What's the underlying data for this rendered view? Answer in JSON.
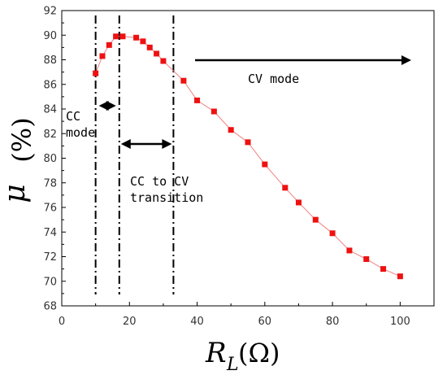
{
  "chart_data": {
    "type": "scatter",
    "xlabel": {
      "symbol": "R",
      "subscript": "L",
      "unit": "(Ω)"
    },
    "ylabel": {
      "symbol": "μ",
      "unit": "(%)"
    },
    "xlim": [
      0,
      110
    ],
    "ylim": [
      68,
      92
    ],
    "xticks": [
      0,
      20,
      40,
      60,
      80,
      100
    ],
    "yticks": [
      68,
      70,
      72,
      74,
      76,
      78,
      80,
      82,
      84,
      86,
      88,
      90,
      92
    ],
    "grid": false,
    "marker_color": "#ee1111",
    "line_color": "#f08080",
    "series": [
      {
        "x": [
          10,
          12,
          14,
          16,
          18,
          22,
          24,
          26,
          28,
          30,
          36,
          40,
          45,
          50,
          55,
          60,
          66,
          70,
          75,
          80,
          85,
          90,
          95,
          100
        ],
        "y": [
          86.9,
          88.3,
          89.2,
          89.9,
          89.9,
          89.8,
          89.5,
          89.0,
          88.5,
          87.9,
          86.3,
          84.7,
          83.8,
          82.3,
          81.3,
          79.5,
          77.6,
          76.4,
          75.0,
          73.9,
          72.5,
          71.8,
          71.0,
          70.4
        ]
      }
    ],
    "boundaries_x": [
      10,
      17,
      33
    ],
    "annotations": [
      {
        "id": "cc",
        "lines": [
          "CC",
          "mode"
        ]
      },
      {
        "id": "transition",
        "lines": [
          "CC to CV",
          "transition"
        ]
      },
      {
        "id": "cv",
        "lines": [
          "CV mode"
        ]
      }
    ]
  }
}
